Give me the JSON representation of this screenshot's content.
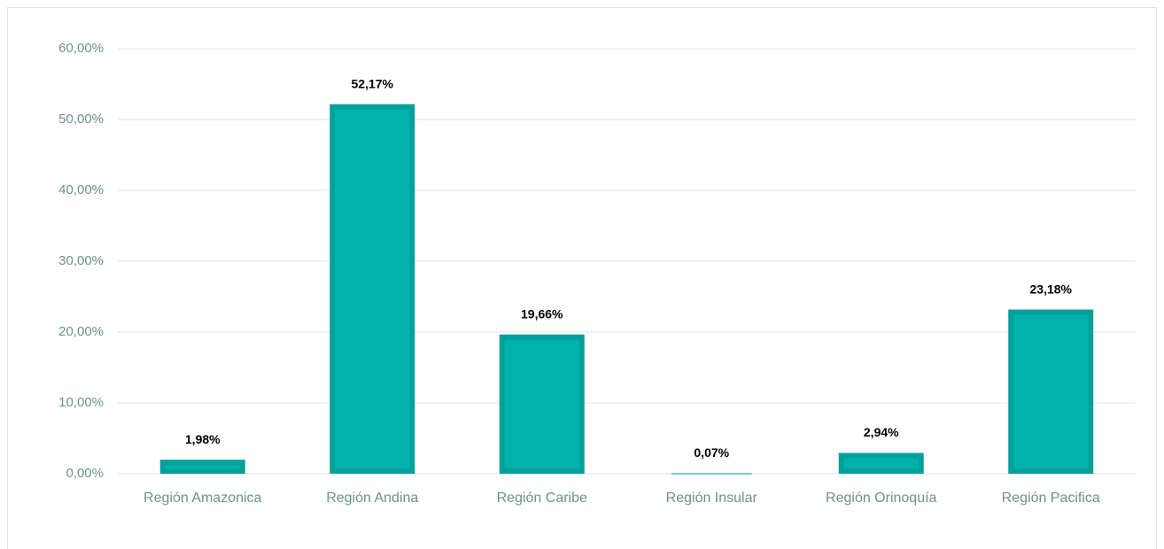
{
  "chart_data": {
    "type": "bar",
    "categories": [
      "Región Amazonica",
      "Región Andina",
      "Región Caribe",
      "Región Insular",
      "Región Orinoquía",
      "Región Pacifica"
    ],
    "values": [
      1.98,
      52.17,
      19.66,
      0.07,
      2.94,
      23.18
    ],
    "value_labels": [
      "1,98%",
      "52,17%",
      "19,66%",
      "0,07%",
      "2,94%",
      "23,18%"
    ],
    "color": "#00b2ab",
    "ylim": [
      0,
      60
    ],
    "yticks": [
      {
        "value": 0,
        "label": "0,00%"
      },
      {
        "value": 10,
        "label": "10,00%"
      },
      {
        "value": 20,
        "label": "20,00%"
      },
      {
        "value": 30,
        "label": "30,00%"
      },
      {
        "value": 40,
        "label": "40,00%"
      },
      {
        "value": 50,
        "label": "50,00%"
      },
      {
        "value": 60,
        "label": "60,00%"
      }
    ],
    "grid": true
  }
}
